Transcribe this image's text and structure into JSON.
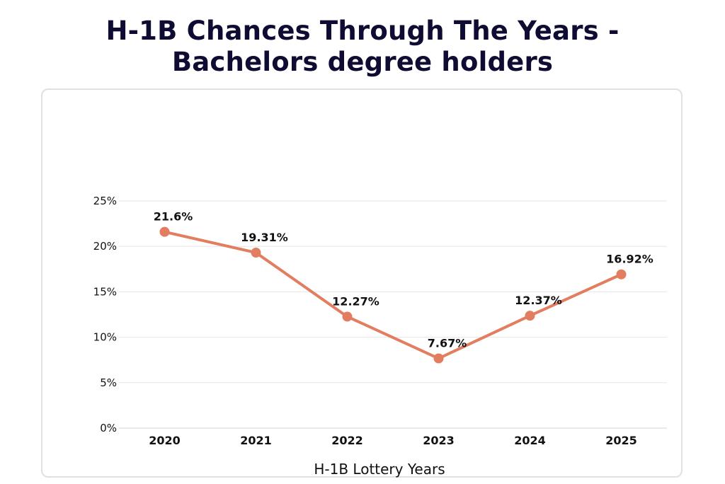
{
  "header": {
    "title_line1": "H-1B Chances Through The Years -",
    "title_line2": "Bachelors degree holders"
  },
  "chart_data": {
    "type": "line",
    "title": "H-1B Chances Through The Years - Bachelors degree holders",
    "xlabel": "H-1B Lottery Years",
    "ylabel": "",
    "categories": [
      "2020",
      "2021",
      "2022",
      "2023",
      "2024",
      "2025"
    ],
    "series": [
      {
        "values": [
          21.6,
          19.31,
          12.27,
          7.67,
          12.37,
          16.92
        ],
        "labels": [
          "21.6%",
          "19.31%",
          "12.27%",
          "7.67%",
          "12.37%",
          "16.92%"
        ],
        "color": "#e37d5f"
      }
    ],
    "ylim": [
      0,
      25
    ],
    "yticks": [
      0,
      5,
      10,
      15,
      20,
      25
    ],
    "ytick_labels": [
      "0%",
      "5%",
      "10%",
      "15%",
      "20%",
      "25%"
    ],
    "grid": true,
    "legend": "none"
  },
  "colors": {
    "title": "#0f0c33",
    "line": "#e37d5f",
    "grid": "#e6e6e6",
    "card_border": "#e1e1e1"
  }
}
